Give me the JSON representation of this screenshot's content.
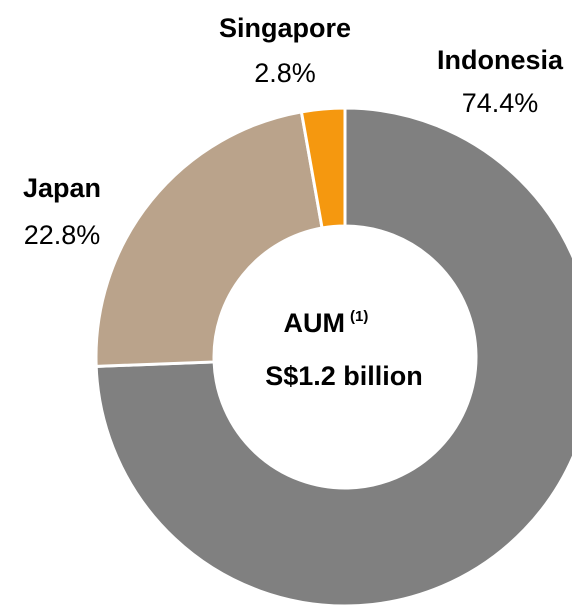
{
  "chart_data": {
    "type": "donut",
    "categories": [
      "Indonesia",
      "Japan",
      "Singapore"
    ],
    "values": [
      74.4,
      22.8,
      2.8
    ],
    "value_labels": [
      "74.4%",
      "22.8%",
      "2.8%"
    ],
    "colors": [
      "#808080",
      "#baa38b",
      "#f5980f"
    ],
    "center_label": "AUM",
    "center_note": "(1)",
    "center_value": "S$1.2 billion"
  }
}
